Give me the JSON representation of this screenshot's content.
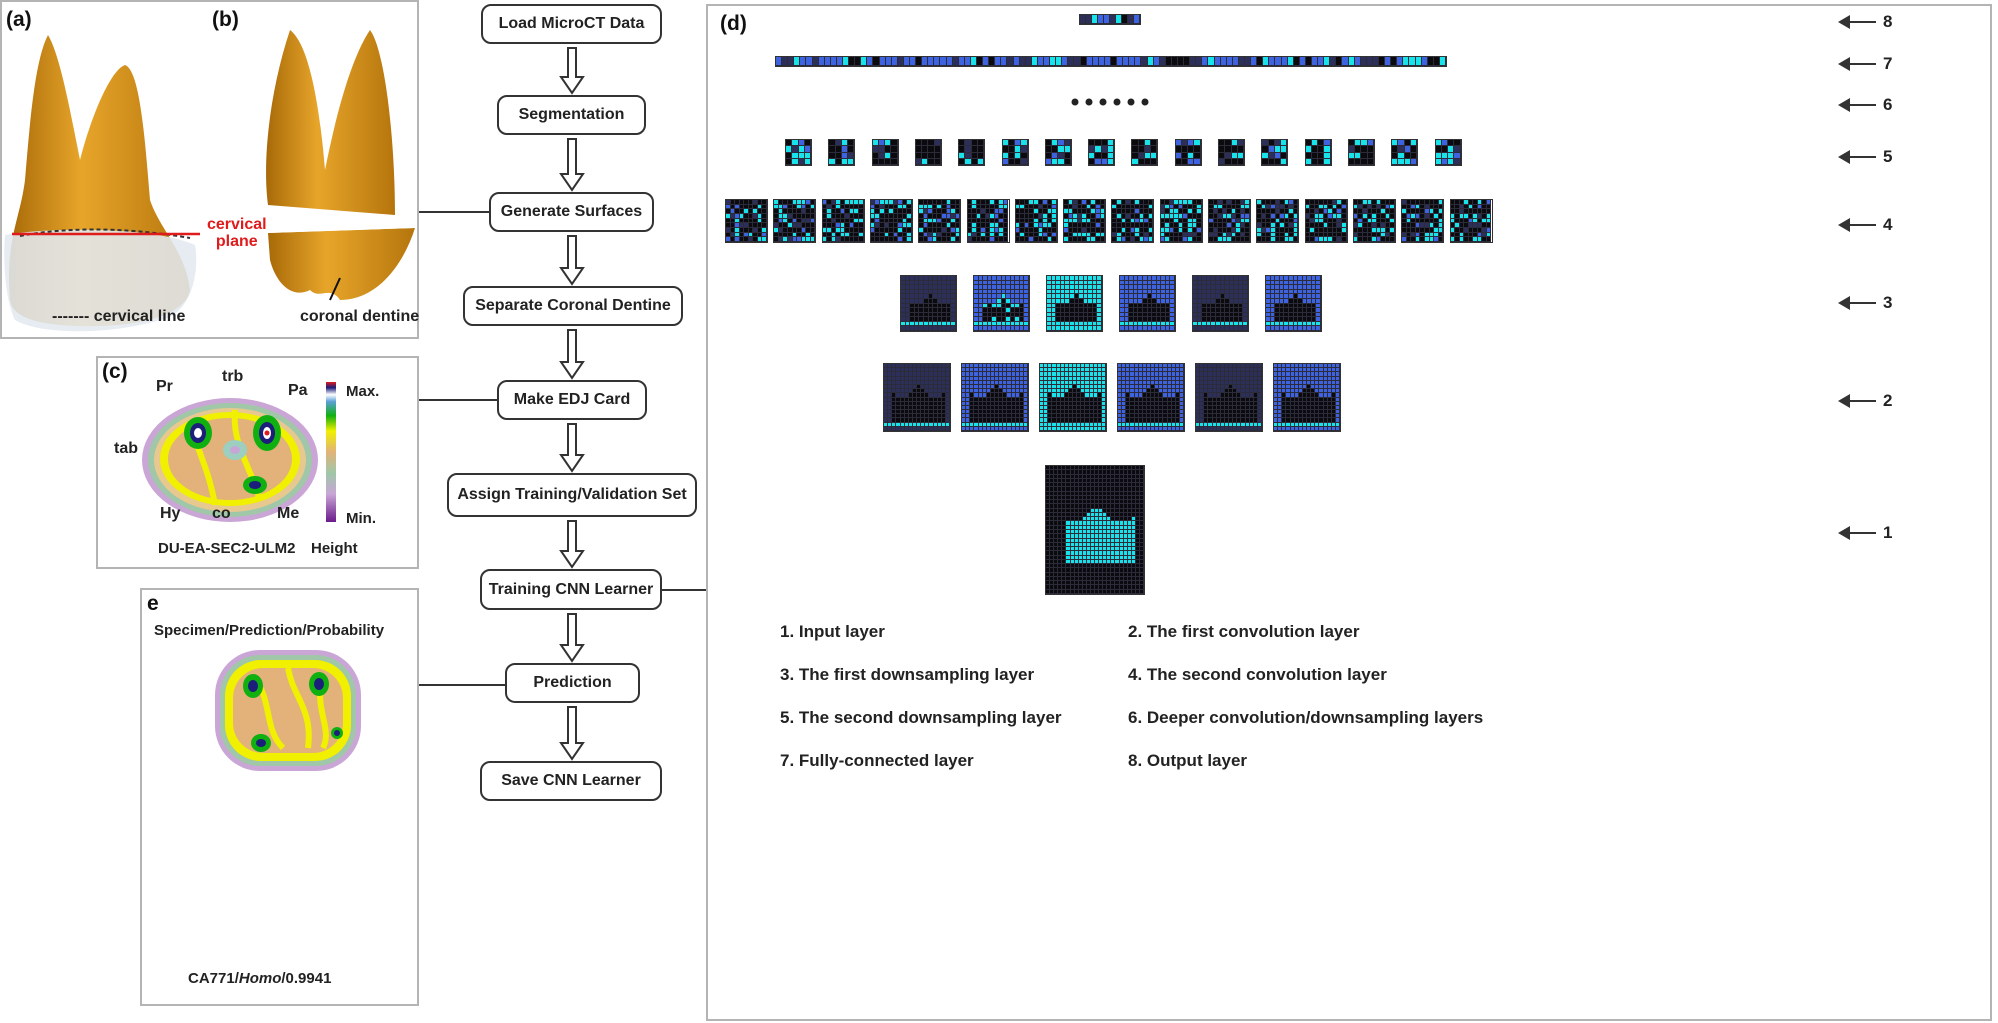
{
  "panels": {
    "a": {
      "label": "(a)",
      "annotations": {
        "cervical_plane": "cervical\nplane",
        "cervical_line": "------- cervical line"
      }
    },
    "b": {
      "label": "(b)",
      "annotations": {
        "coronal_dentine": "coronal dentine"
      }
    },
    "c": {
      "label": "(c)",
      "landmarks": [
        "Pr",
        "trb",
        "Pa",
        "tab",
        "Hy",
        "co",
        "Me"
      ],
      "specimen": "DU-EA-SEC2-ULM2",
      "colorbar": {
        "max": "Max.",
        "min": "Min.",
        "title": "Height"
      }
    },
    "e": {
      "label": "e",
      "title": "Specimen/Prediction/Probability",
      "result": {
        "specimen": "CA771/",
        "genus": "Homo",
        "probability": "/0.9941"
      }
    },
    "d": {
      "label": "(d)"
    }
  },
  "flowchart": {
    "steps": [
      "Load MicroCT Data",
      "Segmentation",
      "Generate Surfaces",
      "Separate Coronal Dentine",
      "Make EDJ Card",
      "Assign Training/Validation Set",
      "Training CNN Learner",
      "Prediction",
      "Save CNN Learner"
    ]
  },
  "cnn": {
    "layer_markers": [
      "8",
      "7",
      "6",
      "5",
      "4",
      "3",
      "2",
      "1"
    ],
    "legend": [
      "1. Input layer",
      "2. The first convolution layer",
      "3. The first downsampling layer",
      "4. The second convolution layer",
      "5. The second downsampling layer",
      "6. Deeper convolution/downsampling layers",
      "7. Fully-connected layer",
      "8. Output layer"
    ],
    "colors": {
      "cyan": "#19e3ea",
      "blue": "#3d63e0",
      "dark": "#0a0a0f",
      "navy": "#2c2f5a",
      "tooth": "#d99a1c",
      "enamel": "#dfe6ee",
      "cervical_plane": "#e01b1b"
    }
  }
}
